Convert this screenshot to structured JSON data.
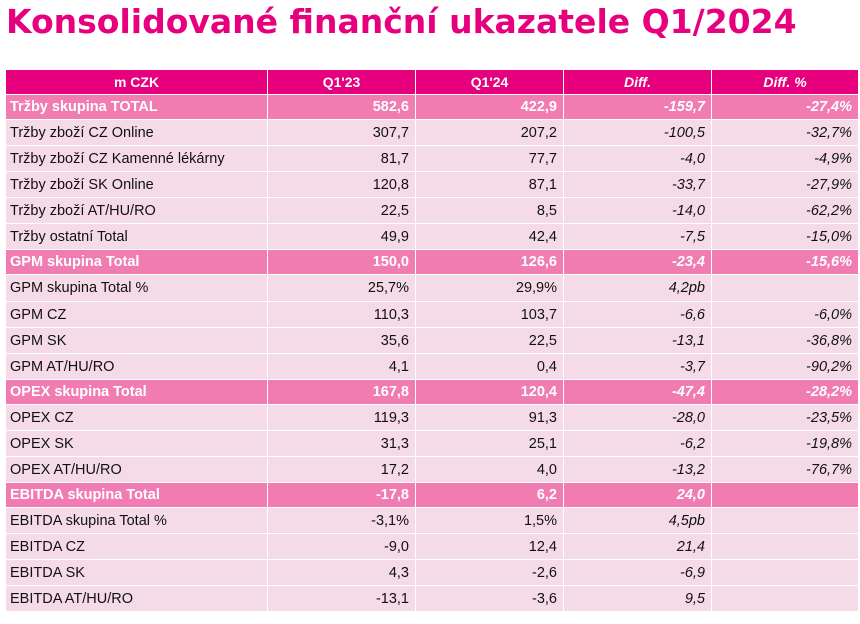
{
  "title": "Konsolidované finanční ukazatele Q1/2024",
  "table": {
    "headers": [
      "m CZK",
      "Q1'23",
      "Q1'24",
      "Diff.",
      "Diff. %"
    ],
    "rows": [
      {
        "label": "Tržby skupina TOTAL",
        "q123": "582,6",
        "q124": "422,9",
        "diff": "-159,7",
        "diffp": "-27,4%",
        "total": true
      },
      {
        "label": "Tržby zboží CZ Online",
        "q123": "307,7",
        "q124": "207,2",
        "diff": "-100,5",
        "diffp": "-32,7%"
      },
      {
        "label": "Tržby zboží CZ Kamenné lékárny",
        "q123": "81,7",
        "q124": "77,7",
        "diff": "-4,0",
        "diffp": "-4,9%"
      },
      {
        "label": "Tržby zboží SK Online",
        "q123": "120,8",
        "q124": "87,1",
        "diff": "-33,7",
        "diffp": "-27,9%"
      },
      {
        "label": "Tržby zboží AT/HU/RO",
        "q123": "22,5",
        "q124": "8,5",
        "diff": "-14,0",
        "diffp": "-62,2%"
      },
      {
        "label": "Tržby ostatní Total",
        "q123": "49,9",
        "q124": "42,4",
        "diff": "-7,5",
        "diffp": "-15,0%"
      },
      {
        "label": "GPM skupina Total",
        "q123": "150,0",
        "q124": "126,6",
        "diff": "-23,4",
        "diffp": "-15,6%",
        "total": true
      },
      {
        "label": "GPM skupina Total %",
        "q123": "25,7%",
        "q124": "29,9%",
        "diff": "4,2pb",
        "diffp": "",
        "gap": true
      },
      {
        "label": "GPM CZ",
        "q123": "110,3",
        "q124": "103,7",
        "diff": "-6,6",
        "diffp": "-6,0%"
      },
      {
        "label": "GPM SK",
        "q123": "35,6",
        "q124": "22,5",
        "diff": "-13,1",
        "diffp": "-36,8%"
      },
      {
        "label": "GPM AT/HU/RO",
        "q123": "4,1",
        "q124": "0,4",
        "diff": "-3,7",
        "diffp": "-90,2%"
      },
      {
        "label": "OPEX skupina Total",
        "q123": "167,8",
        "q124": "120,4",
        "diff": "-47,4",
        "diffp": "-28,2%",
        "total": true
      },
      {
        "label": "OPEX CZ",
        "q123": "119,3",
        "q124": "91,3",
        "diff": "-28,0",
        "diffp": "-23,5%"
      },
      {
        "label": "OPEX SK",
        "q123": "31,3",
        "q124": "25,1",
        "diff": "-6,2",
        "diffp": "-19,8%"
      },
      {
        "label": "OPEX AT/HU/RO",
        "q123": "17,2",
        "q124": "4,0",
        "diff": "-13,2",
        "diffp": "-76,7%"
      },
      {
        "label": "EBITDA skupina Total",
        "q123": "-17,8",
        "q124": "6,2",
        "diff": "24,0",
        "diffp": "",
        "total": true
      },
      {
        "label": "EBITDA skupina Total %",
        "q123": "-3,1%",
        "q124": "1,5%",
        "diff": "4,5pb",
        "diffp": ""
      },
      {
        "label": "EBITDA CZ",
        "q123": "-9,0",
        "q124": "12,4",
        "diff": "21,4",
        "diffp": ""
      },
      {
        "label": "EBITDA SK",
        "q123": "4,3",
        "q124": "-2,6",
        "diff": "-6,9",
        "diffp": ""
      },
      {
        "label": "EBITDA AT/HU/RO",
        "q123": "-13,1",
        "q124": "-3,6",
        "diff": "9,5",
        "diffp": ""
      }
    ]
  },
  "colors": {
    "accent": "#e6007e",
    "total_row": "#f07cb2",
    "row_bg": "#f5dbe8"
  }
}
